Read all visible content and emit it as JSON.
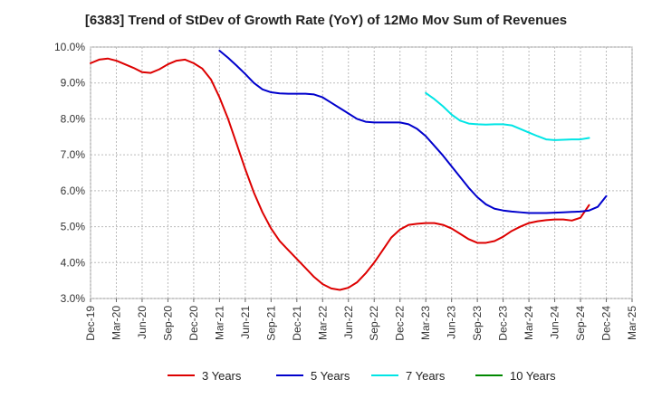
{
  "chart_data": {
    "type": "line",
    "title": "[6383]  Trend of StDev of Growth Rate (YoY) of 12Mo Mov Sum of Revenues",
    "xlabel": "",
    "ylabel": "",
    "ylim": [
      3.0,
      10.0
    ],
    "y_ticks": [
      3.0,
      4.0,
      5.0,
      6.0,
      7.0,
      8.0,
      9.0,
      10.0
    ],
    "y_tick_labels": [
      "3.0%",
      "4.0%",
      "5.0%",
      "6.0%",
      "7.0%",
      "8.0%",
      "9.0%",
      "10.0%"
    ],
    "x_tick_labels": [
      "Dec-19",
      "Mar-20",
      "Jun-20",
      "Sep-20",
      "Dec-20",
      "Mar-21",
      "Jun-21",
      "Sep-21",
      "Dec-21",
      "Mar-22",
      "Jun-22",
      "Sep-22",
      "Dec-22",
      "Mar-23",
      "Jun-23",
      "Sep-23",
      "Dec-23",
      "Mar-24",
      "Jun-24",
      "Sep-24",
      "Dec-24",
      "Mar-25"
    ],
    "x_start": "Dec-19",
    "x_end": "Mar-25",
    "grid": true,
    "legend_position": "bottom",
    "series": [
      {
        "name": "3 Years",
        "color": "#dd0000",
        "start_index": 0,
        "values": [
          9.55,
          9.65,
          9.68,
          9.62,
          9.52,
          9.42,
          9.3,
          9.28,
          9.38,
          9.52,
          9.62,
          9.65,
          9.55,
          9.4,
          9.1,
          8.6,
          8.0,
          7.3,
          6.6,
          5.95,
          5.4,
          4.95,
          4.6,
          4.35,
          4.1,
          3.85,
          3.6,
          3.4,
          3.28,
          3.24,
          3.3,
          3.45,
          3.7,
          4.0,
          4.35,
          4.7,
          4.92,
          5.05,
          5.08,
          5.1,
          5.1,
          5.05,
          4.95,
          4.8,
          4.65,
          4.55,
          4.55,
          4.6,
          4.72,
          4.88,
          5.0,
          5.1,
          5.15,
          5.18,
          5.2,
          5.2,
          5.17,
          5.25,
          5.6
        ]
      },
      {
        "name": "5 Years",
        "color": "#0000cc",
        "start_index": 15,
        "values": [
          9.9,
          9.7,
          9.48,
          9.25,
          9.0,
          8.82,
          8.74,
          8.71,
          8.7,
          8.7,
          8.7,
          8.68,
          8.6,
          8.45,
          8.3,
          8.15,
          8.0,
          7.92,
          7.9,
          7.9,
          7.9,
          7.9,
          7.85,
          7.72,
          7.52,
          7.25,
          6.98,
          6.68,
          6.38,
          6.08,
          5.82,
          5.62,
          5.5,
          5.45,
          5.42,
          5.4,
          5.38,
          5.38,
          5.38,
          5.39,
          5.4,
          5.41,
          5.42,
          5.45,
          5.55,
          5.85
        ]
      },
      {
        "name": "7 Years",
        "color": "#00e5e5",
        "start_index": 39,
        "values": [
          8.72,
          8.55,
          8.35,
          8.12,
          7.95,
          7.87,
          7.85,
          7.84,
          7.85,
          7.85,
          7.82,
          7.72,
          7.62,
          7.52,
          7.43,
          7.41,
          7.42,
          7.43,
          7.43,
          7.47
        ]
      },
      {
        "name": "10 Years",
        "color": "#008800",
        "start_index": 0,
        "values": []
      }
    ]
  }
}
